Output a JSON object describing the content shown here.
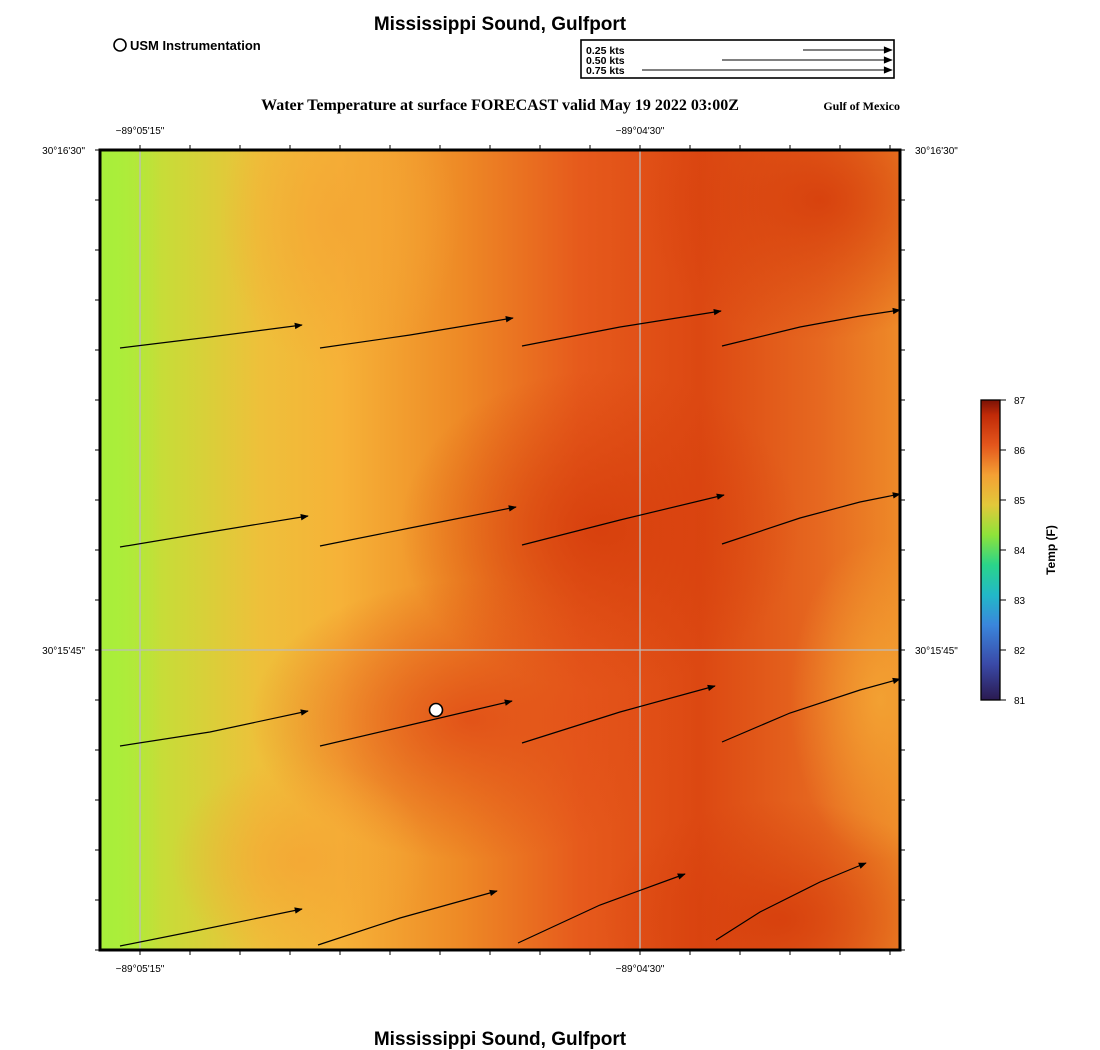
{
  "header": {
    "title": "Mississippi Sound, Gulfport",
    "legend_marker_label": "USM Instrumentation",
    "map_title": "Water Temperature at surface FORECAST valid May 19 2022 03:00Z",
    "region_label": "Gulf of Mexico"
  },
  "footer": {
    "title": "Mississippi Sound, Gulfport"
  },
  "speed_legend": {
    "items": [
      {
        "label": "0.25 kts",
        "speed": 0.25
      },
      {
        "label": "0.50 kts",
        "speed": 0.5
      },
      {
        "label": "0.75 kts",
        "speed": 0.75
      }
    ]
  },
  "map": {
    "lon_labels": [
      "−89°05'15\"",
      "−89°04'30\""
    ],
    "lat_labels": [
      "30°16'30\"",
      "30°15'45\""
    ],
    "station_marker": {
      "name": "USM Instrumentation",
      "lon_frac": 0.42,
      "lat_frac": 0.7
    }
  },
  "colorbar": {
    "label": "Temp (F)",
    "ticks": [
      "87",
      "86",
      "85",
      "84",
      "83",
      "82",
      "81"
    ],
    "min": 81,
    "max": 87
  },
  "colors": {
    "temp_84": "#a8ef3a",
    "temp_85": "#f4b23a",
    "temp_85_5": "#ee8a24",
    "temp_86": "#e2521a",
    "temp_86_5": "#d4400c",
    "grid": "#bcbcbc"
  }
}
